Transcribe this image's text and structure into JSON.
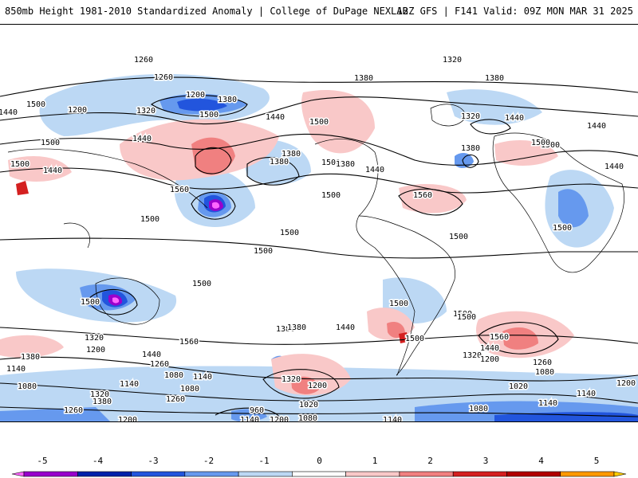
{
  "header": {
    "left_title": "850mb Height 1981-2010 Standardized Anomaly | College of DuPage NEXLAB",
    "right_title": "12Z GFS | F141 Valid: 09Z MON MAR 31 2025"
  },
  "colorbar": {
    "ticks": [
      "-5",
      "-4",
      "-3",
      "-2",
      "-1",
      "0",
      "1",
      "2",
      "3",
      "4",
      "5"
    ],
    "colors": [
      "#ff66ff",
      "#9900cc",
      "#0022aa",
      "#2255dd",
      "#6699ee",
      "#bcd8f4",
      "#ffffff",
      "#f9c8c8",
      "#f08080",
      "#d42020",
      "#b00000",
      "#ff9900",
      "#ffcc00"
    ]
  },
  "contour_labels": [
    {
      "text": "1260"
    },
    {
      "text": "1320"
    },
    {
      "text": "1380"
    },
    {
      "text": "1440"
    },
    {
      "text": "1200"
    },
    {
      "text": "1320"
    },
    {
      "text": "1380"
    },
    {
      "text": "1440"
    },
    {
      "text": "1500"
    },
    {
      "text": "1260"
    },
    {
      "text": "1200"
    },
    {
      "text": "1380"
    },
    {
      "text": "1500"
    },
    {
      "text": "1440"
    },
    {
      "text": "1500"
    },
    {
      "text": "1440"
    },
    {
      "text": "1380"
    },
    {
      "text": "1560"
    },
    {
      "text": "1500"
    },
    {
      "text": "1440"
    },
    {
      "text": "1380"
    },
    {
      "text": "1320"
    },
    {
      "text": "1500"
    },
    {
      "text": "1440"
    },
    {
      "text": "1560"
    },
    {
      "text": "1500"
    },
    {
      "text": "1380"
    },
    {
      "text": "1380"
    },
    {
      "text": "1440"
    },
    {
      "text": "1500"
    },
    {
      "text": "1440"
    },
    {
      "text": "1500"
    },
    {
      "text": "1500"
    },
    {
      "text": "1500"
    },
    {
      "text": "1500"
    },
    {
      "text": "1500"
    },
    {
      "text": "1500"
    },
    {
      "text": "1500"
    },
    {
      "text": "1500"
    },
    {
      "text": "1500"
    },
    {
      "text": "1500"
    },
    {
      "text": "1500"
    },
    {
      "text": "1500"
    },
    {
      "text": "1380"
    },
    {
      "text": "1440"
    },
    {
      "text": "1560"
    },
    {
      "text": "1500"
    },
    {
      "text": "1560"
    },
    {
      "text": "1320"
    },
    {
      "text": "1200"
    },
    {
      "text": "1380"
    },
    {
      "text": "1440"
    },
    {
      "text": "1260"
    },
    {
      "text": "1260"
    },
    {
      "text": "1320"
    },
    {
      "text": "1200"
    },
    {
      "text": "1320"
    },
    {
      "text": "1440"
    },
    {
      "text": "1380"
    },
    {
      "text": "1200"
    },
    {
      "text": "1260"
    },
    {
      "text": "1140"
    },
    {
      "text": "1080"
    },
    {
      "text": "1140"
    },
    {
      "text": "1080"
    },
    {
      "text": "1140"
    },
    {
      "text": "1080"
    },
    {
      "text": "1320"
    },
    {
      "text": "1380"
    },
    {
      "text": "1260"
    },
    {
      "text": "960"
    },
    {
      "text": "1020"
    },
    {
      "text": "1080"
    },
    {
      "text": "1140"
    },
    {
      "text": "1200"
    },
    {
      "text": "1200"
    },
    {
      "text": "1080"
    },
    {
      "text": "1020"
    },
    {
      "text": "1140"
    },
    {
      "text": "1140"
    },
    {
      "text": "1080"
    },
    {
      "text": "1200"
    },
    {
      "text": "1140"
    }
  ]
}
